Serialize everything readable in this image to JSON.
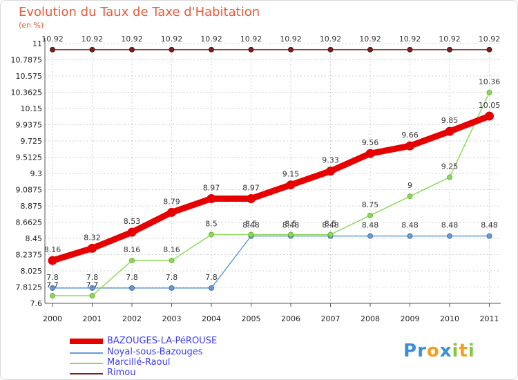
{
  "title": "Evolution du Taux de Taxe d'Habitation",
  "subtitle": "(en %)",
  "logo": {
    "letters": [
      {
        "ch": "P",
        "color": "#3a8fd8"
      },
      {
        "ch": "r",
        "color": "#3a8fd8"
      },
      {
        "ch": "o",
        "color": "#f0a020"
      },
      {
        "ch": "x",
        "color": "#3a8fd8"
      },
      {
        "ch": "i",
        "color": "#8cc63f"
      },
      {
        "ch": "t",
        "color": "#f0a020"
      },
      {
        "ch": "i",
        "color": "#8cc63f"
      }
    ]
  },
  "chart_data": {
    "type": "line",
    "x": [
      "2000",
      "2001",
      "2002",
      "2003",
      "2004",
      "2005",
      "2006",
      "2007",
      "2008",
      "2009",
      "2010",
      "2011"
    ],
    "ylim": [
      7.6,
      11
    ],
    "y_ticks": [
      "11",
      "10.7875",
      "10.575",
      "10.3625",
      "10.15",
      "9.9375",
      "9.725",
      "9.5125",
      "9.3",
      "9.0875",
      "8.875",
      "8.6625",
      "8.45",
      "8.2375",
      "8.025",
      "7.8125",
      "7.6"
    ],
    "grid": "dotted",
    "legend_position": "bottom-left",
    "series": [
      {
        "name": "BAZOUGES-LA-PéROUSE",
        "color": "#e60000",
        "values": [
          8.16,
          8.32,
          8.53,
          8.79,
          8.97,
          8.97,
          9.15,
          9.33,
          9.56,
          9.66,
          9.85,
          10.05
        ],
        "labels": [
          "8.16",
          "8.32",
          "8.53",
          "8.79",
          "8.97",
          "8.97",
          "9.15",
          "9.33",
          "9.56",
          "9.66",
          "9.85",
          "10.05"
        ]
      },
      {
        "name": "Noyal-sous-Bazouges",
        "color": "#6b9bd1",
        "values": [
          7.8,
          7.8,
          7.8,
          7.8,
          7.8,
          8.48,
          8.48,
          8.48,
          8.48,
          8.48,
          8.48,
          8.48
        ],
        "labels": [
          "7.8",
          "7.8",
          "7.8",
          "7.8",
          "7.8",
          "8.48",
          "8.48",
          "8.48",
          "8.48",
          "8.48",
          "8.48",
          "8.48"
        ]
      },
      {
        "name": "Marcillé-Raoul",
        "color": "#8fd85c",
        "values": [
          7.7,
          7.7,
          8.16,
          8.16,
          8.5,
          8.5,
          8.5,
          8.5,
          8.75,
          9,
          9.25,
          10.36
        ],
        "labels": [
          "7.7",
          "7.7",
          "8.16",
          "8.16",
          "8.5",
          "8.5",
          "8.5",
          "8.5",
          "8.75",
          "9",
          "9.25",
          "10.36"
        ]
      },
      {
        "name": "Rimou",
        "color": "#7a1f1f",
        "values": [
          10.92,
          10.92,
          10.92,
          10.92,
          10.92,
          10.92,
          10.92,
          10.92,
          10.92,
          10.92,
          10.92,
          10.92
        ],
        "labels": [
          "10.92",
          "10.92",
          "10.92",
          "10.92",
          "10.92",
          "10.92",
          "10.92",
          "10.92",
          "10.92",
          "10.92",
          "10.92",
          "10.92"
        ]
      }
    ]
  }
}
